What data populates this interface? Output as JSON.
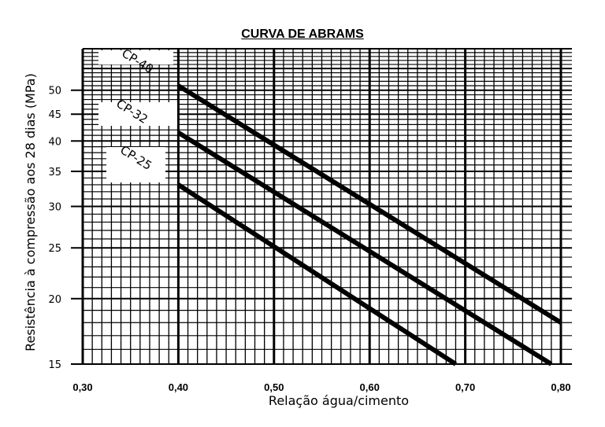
{
  "chart_data": {
    "type": "line",
    "title": "CURVA DE ABRAMS",
    "xlabel": "Relação água/cimento",
    "ylabel": "Resistência à compressão aos 28 dias (MPa)",
    "x_ticks": [
      "0,30",
      "0,40",
      "0,50",
      "0,60",
      "0,70",
      "0,80"
    ],
    "y_ticks": [
      15,
      20,
      25,
      30,
      35,
      40,
      45,
      50
    ],
    "xlim": [
      0.3,
      0.8
    ],
    "ylim": [
      15,
      60
    ],
    "y_scale": "log",
    "grid": true,
    "series": [
      {
        "name": "CP-40",
        "x": [
          0.4,
          0.8
        ],
        "y": [
          51,
          18
        ]
      },
      {
        "name": "CP-32",
        "x": [
          0.4,
          0.79
        ],
        "y": [
          41.5,
          15
        ]
      },
      {
        "name": "CP-25",
        "x": [
          0.4,
          0.69
        ],
        "y": [
          33,
          15
        ]
      }
    ]
  }
}
